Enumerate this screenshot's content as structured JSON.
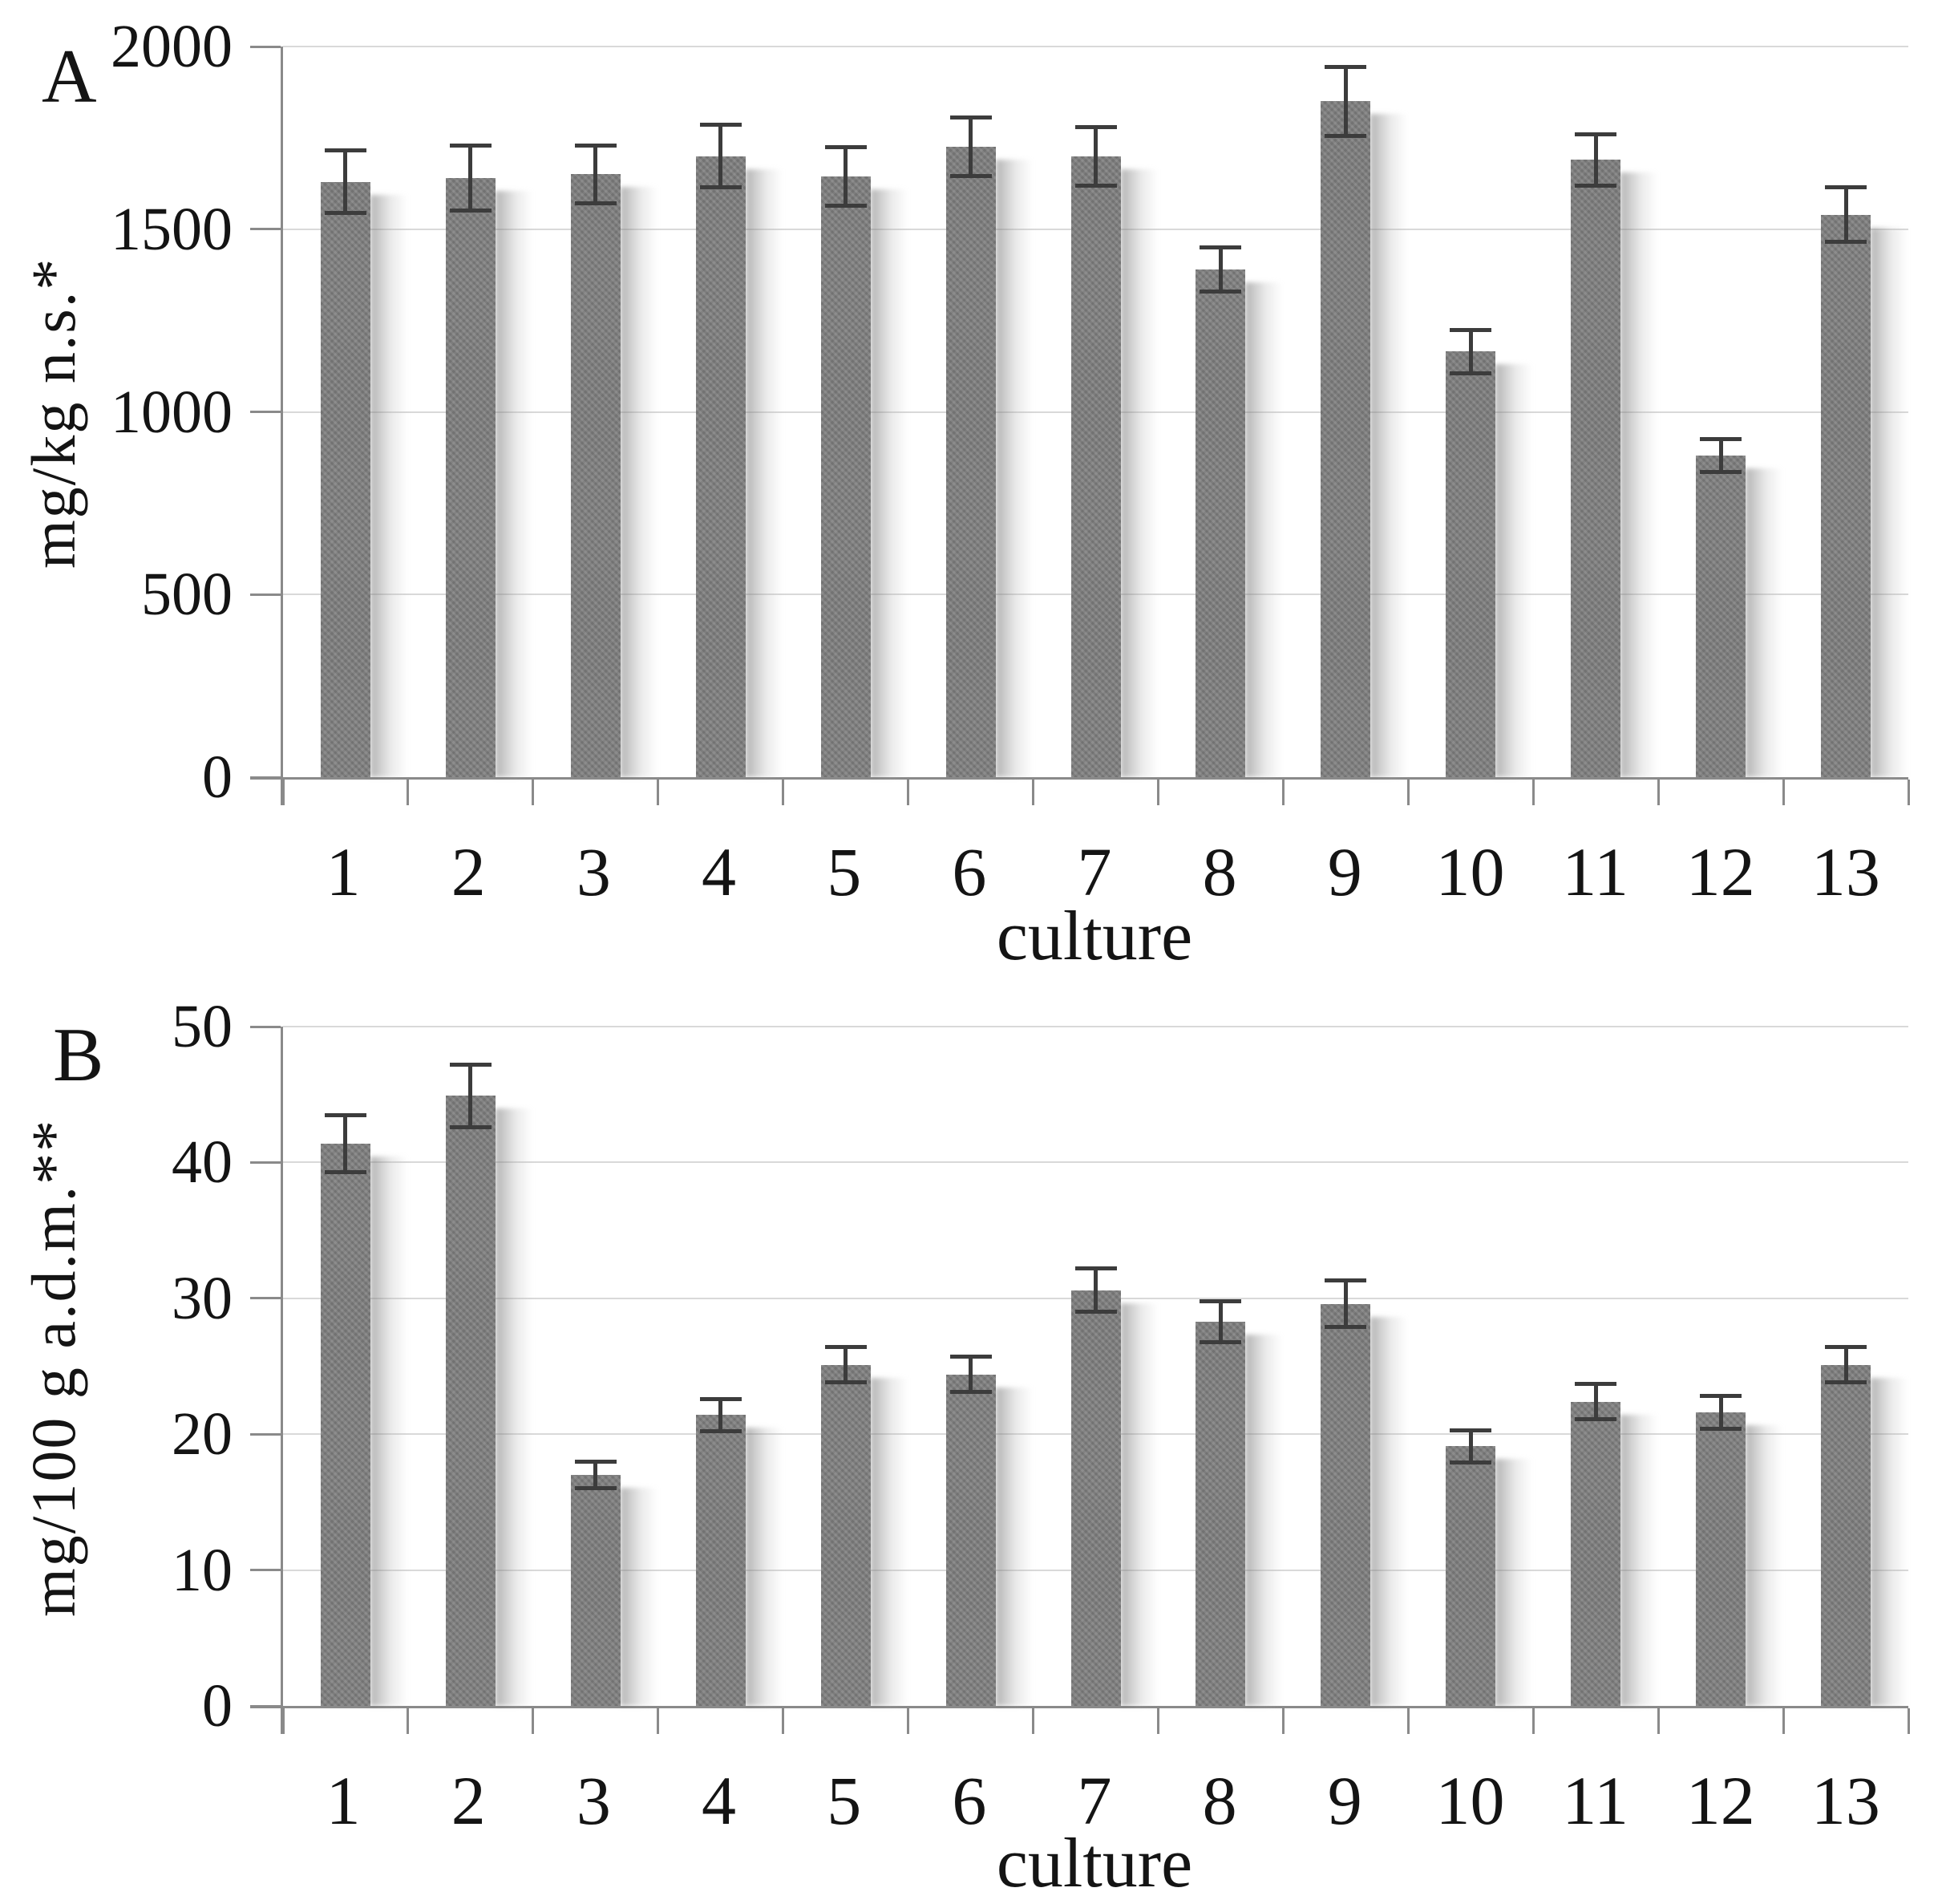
{
  "figure": {
    "background": "#ffffff",
    "panels": [
      {
        "label": "A"
      },
      {
        "label": "B"
      }
    ]
  },
  "styles": {
    "bar_color": "#7d7d7d",
    "axis_color": "#8a8a8a",
    "grid_color": "#d9d9d9",
    "error_bar_color": "#3c3c3c",
    "text_color": "#141414",
    "shadow_color": "#bdbdbd"
  },
  "chart_data": [
    {
      "type": "bar",
      "panel_label": "A",
      "title": "",
      "xlabel": "culture",
      "ylabel": "mg/kg n.s.*",
      "categories": [
        "1",
        "2",
        "3",
        "4",
        "5",
        "6",
        "7",
        "8",
        "9",
        "10",
        "11",
        "12",
        "13"
      ],
      "values": [
        1630,
        1640,
        1650,
        1700,
        1645,
        1725,
        1700,
        1390,
        1850,
        1165,
        1690,
        880,
        1540
      ],
      "error_bars": [
        85,
        90,
        80,
        85,
        80,
        80,
        80,
        60,
        95,
        60,
        70,
        45,
        75
      ],
      "ylim": [
        0,
        2000
      ],
      "yticks": [
        0,
        500,
        1000,
        1500,
        2000
      ],
      "ytick_labels": [
        "0",
        "500",
        "1000",
        "1500",
        "2000"
      ],
      "grid": true,
      "legend": "none"
    },
    {
      "type": "bar",
      "panel_label": "B",
      "title": "",
      "xlabel": "culture",
      "ylabel": "mg/100 g a.d.m.**",
      "categories": [
        "1",
        "2",
        "3",
        "4",
        "5",
        "6",
        "7",
        "8",
        "9",
        "10",
        "11",
        "12",
        "13"
      ],
      "values": [
        41.4,
        44.9,
        17.0,
        21.4,
        25.1,
        24.4,
        30.6,
        28.3,
        29.6,
        19.1,
        22.4,
        21.6,
        25.1
      ],
      "error_bars": [
        2.1,
        2.3,
        1.0,
        1.2,
        1.3,
        1.3,
        1.6,
        1.5,
        1.7,
        1.2,
        1.3,
        1.2,
        1.3
      ],
      "ylim": [
        0,
        50
      ],
      "yticks": [
        0,
        10,
        20,
        30,
        40,
        50
      ],
      "ytick_labels": [
        "0",
        "10",
        "20",
        "30",
        "40",
        "50"
      ],
      "grid": true,
      "legend": "none"
    }
  ]
}
